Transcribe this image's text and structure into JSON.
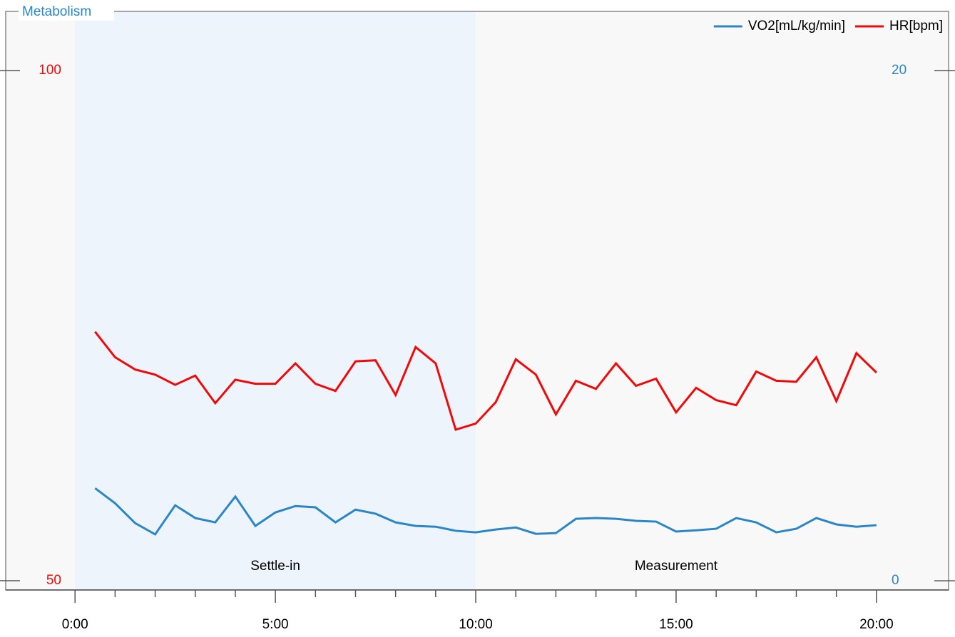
{
  "chart_data": {
    "type": "line",
    "title": "Metabolism",
    "x": [
      0.5,
      1,
      1.5,
      2,
      2.5,
      3,
      3.5,
      4,
      4.5,
      5,
      5.5,
      6,
      6.5,
      7,
      7.5,
      8,
      8.5,
      9,
      9.5,
      10,
      10.5,
      11,
      11.5,
      12,
      12.5,
      13,
      13.5,
      14,
      14.5,
      15,
      15.5,
      16,
      16.5,
      17,
      17.5,
      18,
      18.5,
      19,
      19.5,
      20
    ],
    "series": [
      {
        "name": "VO2[mL/kg/min]",
        "color": "#2a86c6",
        "axis": "y2",
        "values": [
          3.63,
          3.04,
          2.26,
          1.82,
          2.96,
          2.46,
          2.29,
          3.3,
          2.15,
          2.68,
          2.93,
          2.88,
          2.29,
          2.79,
          2.63,
          2.29,
          2.15,
          2.12,
          1.96,
          1.9,
          2.01,
          2.09,
          1.84,
          1.87,
          2.43,
          2.46,
          2.43,
          2.35,
          2.32,
          1.93,
          1.98,
          2.04,
          2.46,
          2.29,
          1.9,
          2.04,
          2.46,
          2.21,
          2.12,
          2.18
        ]
      },
      {
        "name": "HR[bpm]",
        "color": "#ee0a0a",
        "axis": "y",
        "values": [
          74.4,
          71.9,
          70.7,
          70.2,
          69.2,
          70.1,
          67.4,
          69.7,
          69.3,
          69.3,
          71.3,
          69.3,
          68.6,
          71.5,
          71.6,
          68.2,
          72.9,
          71.3,
          64.8,
          65.4,
          67.5,
          71.7,
          70.2,
          66.3,
          69.6,
          68.8,
          71.3,
          69.1,
          69.8,
          66.5,
          68.9,
          67.7,
          67.2,
          70.5,
          69.6,
          69.5,
          71.9,
          67.6,
          72.3,
          70.4
        ]
      }
    ],
    "xlim": [
      -1.73,
      21.8
    ],
    "xticks": [
      {
        "value": 0,
        "label": "0:00"
      },
      {
        "value": 5,
        "label": "5:00"
      },
      {
        "value": 10,
        "label": "10:00"
      },
      {
        "value": 15,
        "label": "15:00"
      },
      {
        "value": 20,
        "label": "20:00"
      }
    ],
    "x_minor_ticks": [
      1,
      2,
      3,
      4,
      6,
      7,
      8,
      9,
      11,
      12,
      13,
      14,
      16,
      17,
      18,
      19
    ],
    "ylim": [
      49.09,
      105.8
    ],
    "yticks": [
      50,
      100
    ],
    "y2lim": [
      -0.36,
      22.32
    ],
    "y2ticks": [
      0,
      20
    ],
    "regions": [
      {
        "label": "Settle-in",
        "start": 0,
        "end": 10,
        "color": "#eef4fb"
      },
      {
        "label": "Measurement",
        "start": 10,
        "end": 20
      }
    ],
    "legend": "upper right"
  }
}
